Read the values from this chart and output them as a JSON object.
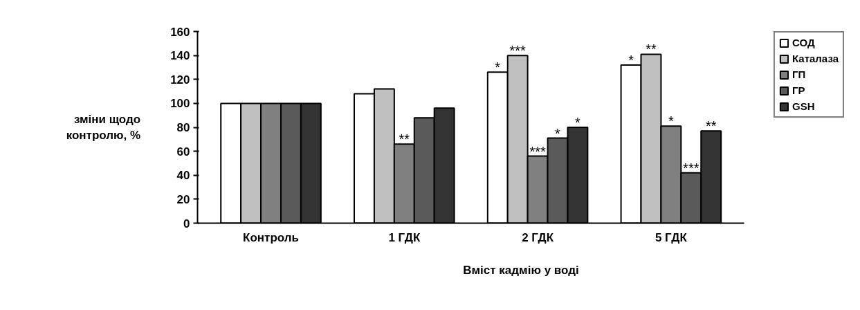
{
  "chart_data": {
    "type": "bar",
    "xlabel": "Вміст кадмію у воді",
    "ylabel": "зміни щодо\nконтролю, %",
    "categories": [
      "Контроль",
      "1 ГДК",
      "2 ГДК",
      "5 ГДК"
    ],
    "series": [
      {
        "name": "СОД",
        "color": "#ffffff",
        "values": [
          100,
          108,
          126,
          132
        ],
        "value_labels": [
          null,
          null,
          "*",
          "*"
        ]
      },
      {
        "name": "Каталаза",
        "color": "#c0c0c0",
        "values": [
          100,
          112,
          140,
          141
        ],
        "value_labels": [
          null,
          null,
          "***",
          "**"
        ]
      },
      {
        "name": "ГП",
        "color": "#808080",
        "values": [
          100,
          66,
          56,
          81
        ],
        "value_labels": [
          null,
          "**",
          "***",
          "*"
        ]
      },
      {
        "name": "ГР",
        "color": "#5a5a5a",
        "values": [
          100,
          88,
          71,
          42
        ],
        "value_labels": [
          null,
          null,
          "*",
          "***"
        ]
      },
      {
        "name": "GSH",
        "color": "#333333",
        "values": [
          100,
          96,
          80,
          77
        ],
        "value_labels": [
          null,
          null,
          "*",
          "**"
        ]
      }
    ],
    "ylim": [
      0,
      160
    ],
    "yticks": [
      0,
      20,
      40,
      60,
      80,
      100,
      120,
      140,
      160
    ],
    "grid": false,
    "legend": "top right"
  }
}
